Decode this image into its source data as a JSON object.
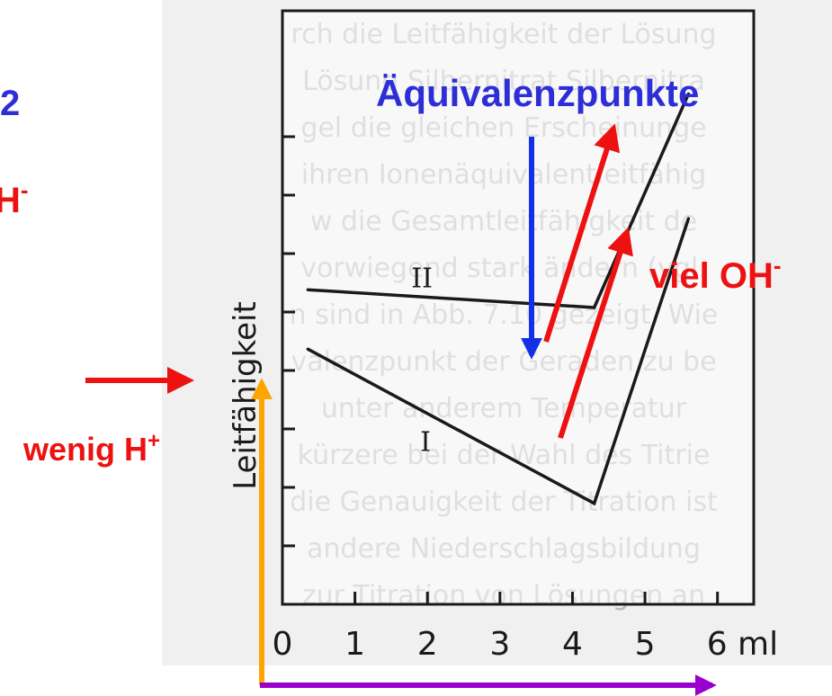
{
  "chart_data": {
    "type": "line",
    "xlabel": "",
    "ylabel": "Leitfähigkeit",
    "x_ticks": [
      "0",
      "1",
      "2",
      "3",
      "4",
      "5",
      "6 ml"
    ],
    "xlim": [
      0,
      6.5
    ],
    "ylim": [
      0,
      10
    ],
    "y_tick_count": 8,
    "series": [
      {
        "name": "II",
        "x": [
          0.35,
          4.3,
          5.6
        ],
        "y": [
          5.3,
          5.0,
          8.6
        ]
      },
      {
        "name": "I",
        "x": [
          0.35,
          4.3,
          5.6
        ],
        "y": [
          4.3,
          1.7,
          6.5
        ]
      }
    ]
  },
  "annotations": {
    "equivalence_label": "Äquivalenzpunkte",
    "viel_oh_label": "viel OH",
    "viel_oh_superscript": "-",
    "wenig_h_label": "wenig H",
    "wenig_h_superscript": "+",
    "partial_top_label": "2",
    "partial_mid_label": "H",
    "partial_mid_superscript": "-"
  },
  "background_text_lines": [
    "rch die Leitfähigkeit der Lösung",
    "Lösung Silbernitrat Silbernitra",
    "gel die gleichen Erscheinunge",
    "ihren Ionenäquivalentleitfähig",
    "w die Gesamtleitfähigkeit de",
    "vorwiegend stark ändern (vgl.",
    "n sind in Abb. 7.10 gezeigt. Wie",
    "valenzpunkt der Geraden zu be",
    "unter anderem Temperatur",
    "kürzere bei der Wahl des Titrie",
    "die Genauigkeit der Titration ist",
    "andere Niederschlagsbildung",
    "zur Titration von Lösungen an"
  ],
  "colors": {
    "equivalence": "#2e2ed6",
    "red": "#ee1111",
    "orange": "#ffa500",
    "purple": "#9900cc",
    "blue_arrow": "#1230e6",
    "line": "#1a1a1a",
    "page_bg": "#f0f0f0"
  }
}
